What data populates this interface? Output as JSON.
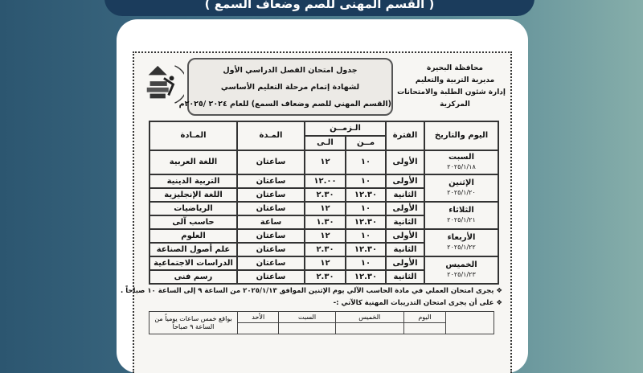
{
  "banner": {
    "text": "( القسم المهنى للصم وضعاف السمع )"
  },
  "document": {
    "org_lines": [
      "محافظة البحيرة",
      "مديرية التربية والتعليم",
      "إدارة شئون الطلبة والامتحانات",
      "المركزية"
    ],
    "title_lines": [
      "جدول امتحان الفصل الدراسي الأول",
      "لشهادة إتمام مرحلة التعليم الأساسي",
      "(القسم المهني للصم وضعاف السمع) للعام ٢٠٢٤ /٢٠٢٥م"
    ],
    "table": {
      "headers": {
        "day": "اليوم والتاريخ",
        "period": "الفترة",
        "time": "الـزمــن",
        "from": "مــن",
        "to": "الـى",
        "duration": "المـدة",
        "subject": "المـادة"
      },
      "days": [
        {
          "day": "السبت",
          "date": "٢٠٢٥/١/١٨",
          "rows": [
            {
              "period": "الأولى",
              "from": "١٠",
              "to": "١٢",
              "duration": "ساعتان",
              "subject": "اللغة العربية"
            }
          ]
        },
        {
          "day": "الإثنين",
          "date": "٢٠٢٥/١/٢٠",
          "rows": [
            {
              "period": "الأولى",
              "from": "١٠",
              "to": "١٢.٠٠",
              "duration": "ساعتان",
              "subject": "التربية الدينية"
            },
            {
              "period": "الثانية",
              "from": "١٢.٣٠",
              "to": "٢.٣٠",
              "duration": "ساعتان",
              "subject": "اللغة الإنجليزية"
            }
          ]
        },
        {
          "day": "الثلاثاء",
          "date": "٢٠٢٥/١/٢١",
          "rows": [
            {
              "period": "الأولى",
              "from": "١٠",
              "to": "١٢",
              "duration": "ساعتان",
              "subject": "الرياضيات"
            },
            {
              "period": "الثانية",
              "from": "١٢.٣٠",
              "to": "١.٣٠",
              "duration": "ساعة",
              "subject": "حاسب آلى"
            }
          ]
        },
        {
          "day": "الأربعاء",
          "date": "٢٠٢٥/١/٢٢",
          "rows": [
            {
              "period": "الأولى",
              "from": "١٠",
              "to": "١٢",
              "duration": "ساعتان",
              "subject": "العلوم"
            },
            {
              "period": "الثانية",
              "from": "١٢.٣٠",
              "to": "٢.٣٠",
              "duration": "ساعتان",
              "subject": "علم أصول الصناعة"
            }
          ]
        },
        {
          "day": "الخميس",
          "date": "٢٠٢٥/١/٢٣",
          "rows": [
            {
              "period": "الأولى",
              "from": "١٠",
              "to": "١٢",
              "duration": "ساعتان",
              "subject": "الدراسات الاجتماعية"
            },
            {
              "period": "الثانية",
              "from": "١٢.٣٠",
              "to": "٢.٣٠",
              "duration": "ساعتان",
              "subject": "رسم فنى"
            }
          ]
        }
      ]
    },
    "notes": [
      "❖ يجرى امتحان العملي في مادة الحاسب الآلي يوم الإثنين الموافق ٢٠٢٥/١/١٣ من الساعة ٩ إلى الساعة ١٠ صباحاً .",
      "❖ على أن يجرى امتحان التدريبات المهنية كالآتي :-"
    ],
    "table2": {
      "headers": [
        "اليوم",
        "الخميس",
        "السبت",
        "الأحد",
        "بواقع خمس ساعات يومياً من الساعة ٩ صباحاً"
      ]
    }
  }
}
